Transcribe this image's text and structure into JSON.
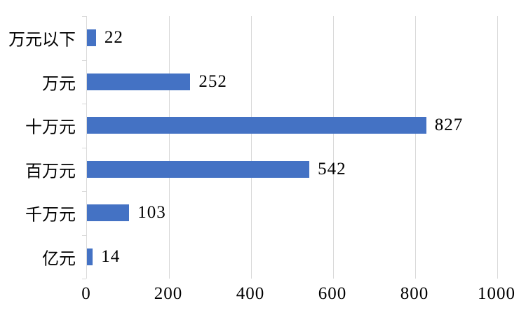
{
  "chart_data": {
    "type": "bar",
    "orientation": "horizontal",
    "title": "",
    "categories": [
      "万元以下",
      "万元",
      "十万元",
      "百万元",
      "千万元",
      "亿元"
    ],
    "values": [
      22,
      252,
      827,
      542,
      103,
      14
    ],
    "xlabel": "",
    "ylabel": "",
    "xlim": [
      0,
      1000
    ],
    "xticks": [
      0,
      200,
      400,
      600,
      800,
      1000
    ],
    "grid": true,
    "legend": null,
    "data_labels": true
  },
  "style": {
    "bar_color": "#4472C4",
    "gridline_color": "#D9D9D9",
    "axis_color": "#D9D9D9",
    "text_color": "#000000",
    "background": "#FFFFFF"
  }
}
